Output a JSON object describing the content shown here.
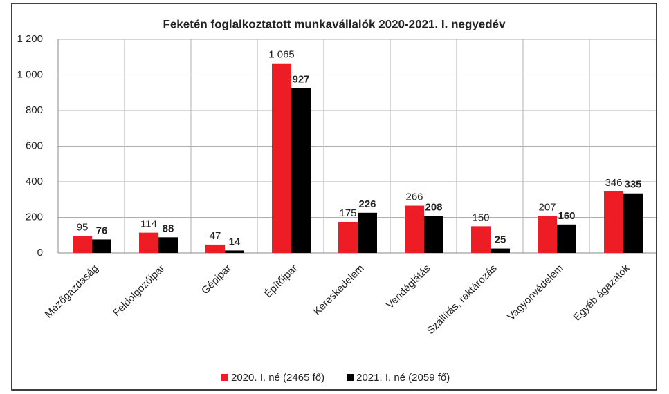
{
  "chart_data": {
    "type": "bar",
    "title": "Feketén foglalkoztatott munkavállalók  2020-2021. I. negyedév",
    "categories": [
      "Mezőgazdaság",
      "Feldolgozóipar",
      "Gépipar",
      "Építőipar",
      "Kereskedelem",
      "Vendéglátás",
      "Szállítás, raktározás",
      "Vagyonvédelem",
      "Egyéb ágazatok"
    ],
    "series": [
      {
        "name": "2020. I. né (2465 fő)",
        "color": "#ee1c25",
        "values": [
          95,
          114,
          47,
          1065,
          175,
          266,
          150,
          207,
          346
        ],
        "value_labels": [
          "95",
          "114",
          "47",
          "1 065",
          "175",
          "266",
          "150",
          "207",
          "346"
        ]
      },
      {
        "name": "2021. I. né (2059 fő)",
        "color": "#000000",
        "values": [
          76,
          88,
          14,
          927,
          226,
          208,
          25,
          160,
          335
        ]
      }
    ],
    "ylim": [
      0,
      1200
    ],
    "yticks": [
      0,
      200,
      400,
      600,
      800,
      {
        "value": 1000,
        "label": "1 000"
      },
      {
        "value": 1200,
        "label": "1 200"
      }
    ],
    "grid": true,
    "legend": "bottom"
  }
}
